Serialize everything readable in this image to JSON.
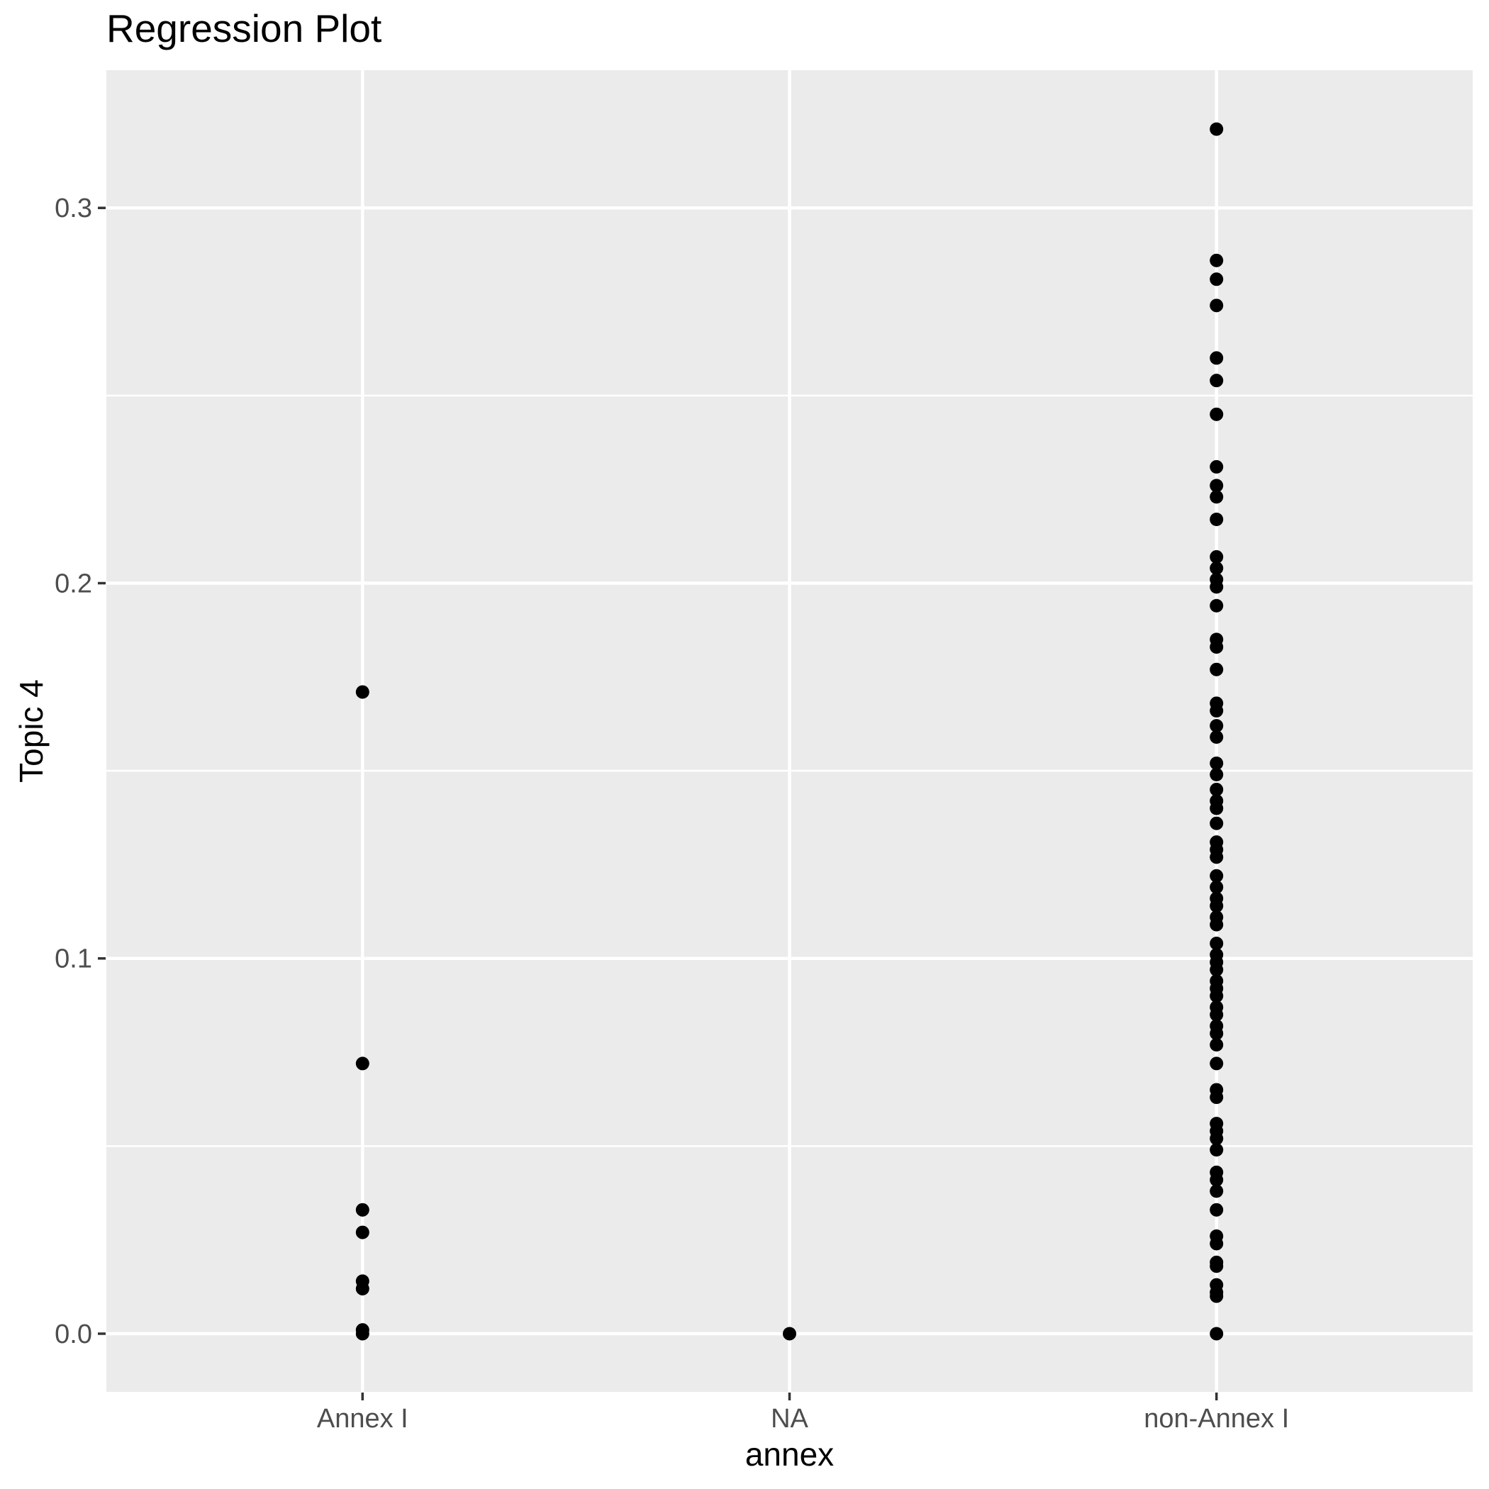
{
  "page": {
    "background": "#FFFFFF"
  },
  "chart_data": {
    "type": "scatter",
    "title": "Regression Plot",
    "xlabel": "annex",
    "ylabel": "Topic 4",
    "categories": [
      "Annex I",
      "NA",
      "non-Annex I"
    ],
    "ylim": [
      -0.0155,
      0.3367
    ],
    "yticks": [
      0.0,
      0.1,
      0.2,
      0.3
    ],
    "ytick_labels": [
      "0.0",
      "0.1",
      "0.2",
      "0.3"
    ],
    "y_minor_ticks": [
      0.05,
      0.15,
      0.25
    ],
    "grid": true,
    "legend_position": "none",
    "point_shape": "circle",
    "series": [
      {
        "name": "Annex I",
        "values": [
          0.171,
          0.072,
          0.033,
          0.027,
          0.014,
          0.012,
          0.001,
          0.0
        ]
      },
      {
        "name": "NA",
        "values": [
          0.0
        ]
      },
      {
        "name": "non-Annex I",
        "values": [
          0.321,
          0.286,
          0.281,
          0.274,
          0.26,
          0.254,
          0.245,
          0.231,
          0.226,
          0.223,
          0.217,
          0.207,
          0.204,
          0.201,
          0.199,
          0.194,
          0.185,
          0.183,
          0.177,
          0.168,
          0.166,
          0.162,
          0.159,
          0.152,
          0.149,
          0.145,
          0.142,
          0.14,
          0.136,
          0.131,
          0.129,
          0.127,
          0.122,
          0.119,
          0.116,
          0.114,
          0.111,
          0.109,
          0.104,
          0.101,
          0.099,
          0.097,
          0.094,
          0.092,
          0.09,
          0.087,
          0.085,
          0.082,
          0.08,
          0.077,
          0.072,
          0.065,
          0.063,
          0.056,
          0.054,
          0.052,
          0.049,
          0.043,
          0.041,
          0.038,
          0.033,
          0.026,
          0.024,
          0.019,
          0.018,
          0.013,
          0.011,
          0.01,
          0.0
        ]
      }
    ],
    "colors": {
      "panel_background": "#EBEBEB",
      "grid_major": "#FFFFFF",
      "grid_minor": "#FFFFFF",
      "point": "#000000",
      "tick_mark": "#333333",
      "tick_label": "#4D4D4D",
      "axis_title": "#000000",
      "title": "#000000"
    }
  }
}
